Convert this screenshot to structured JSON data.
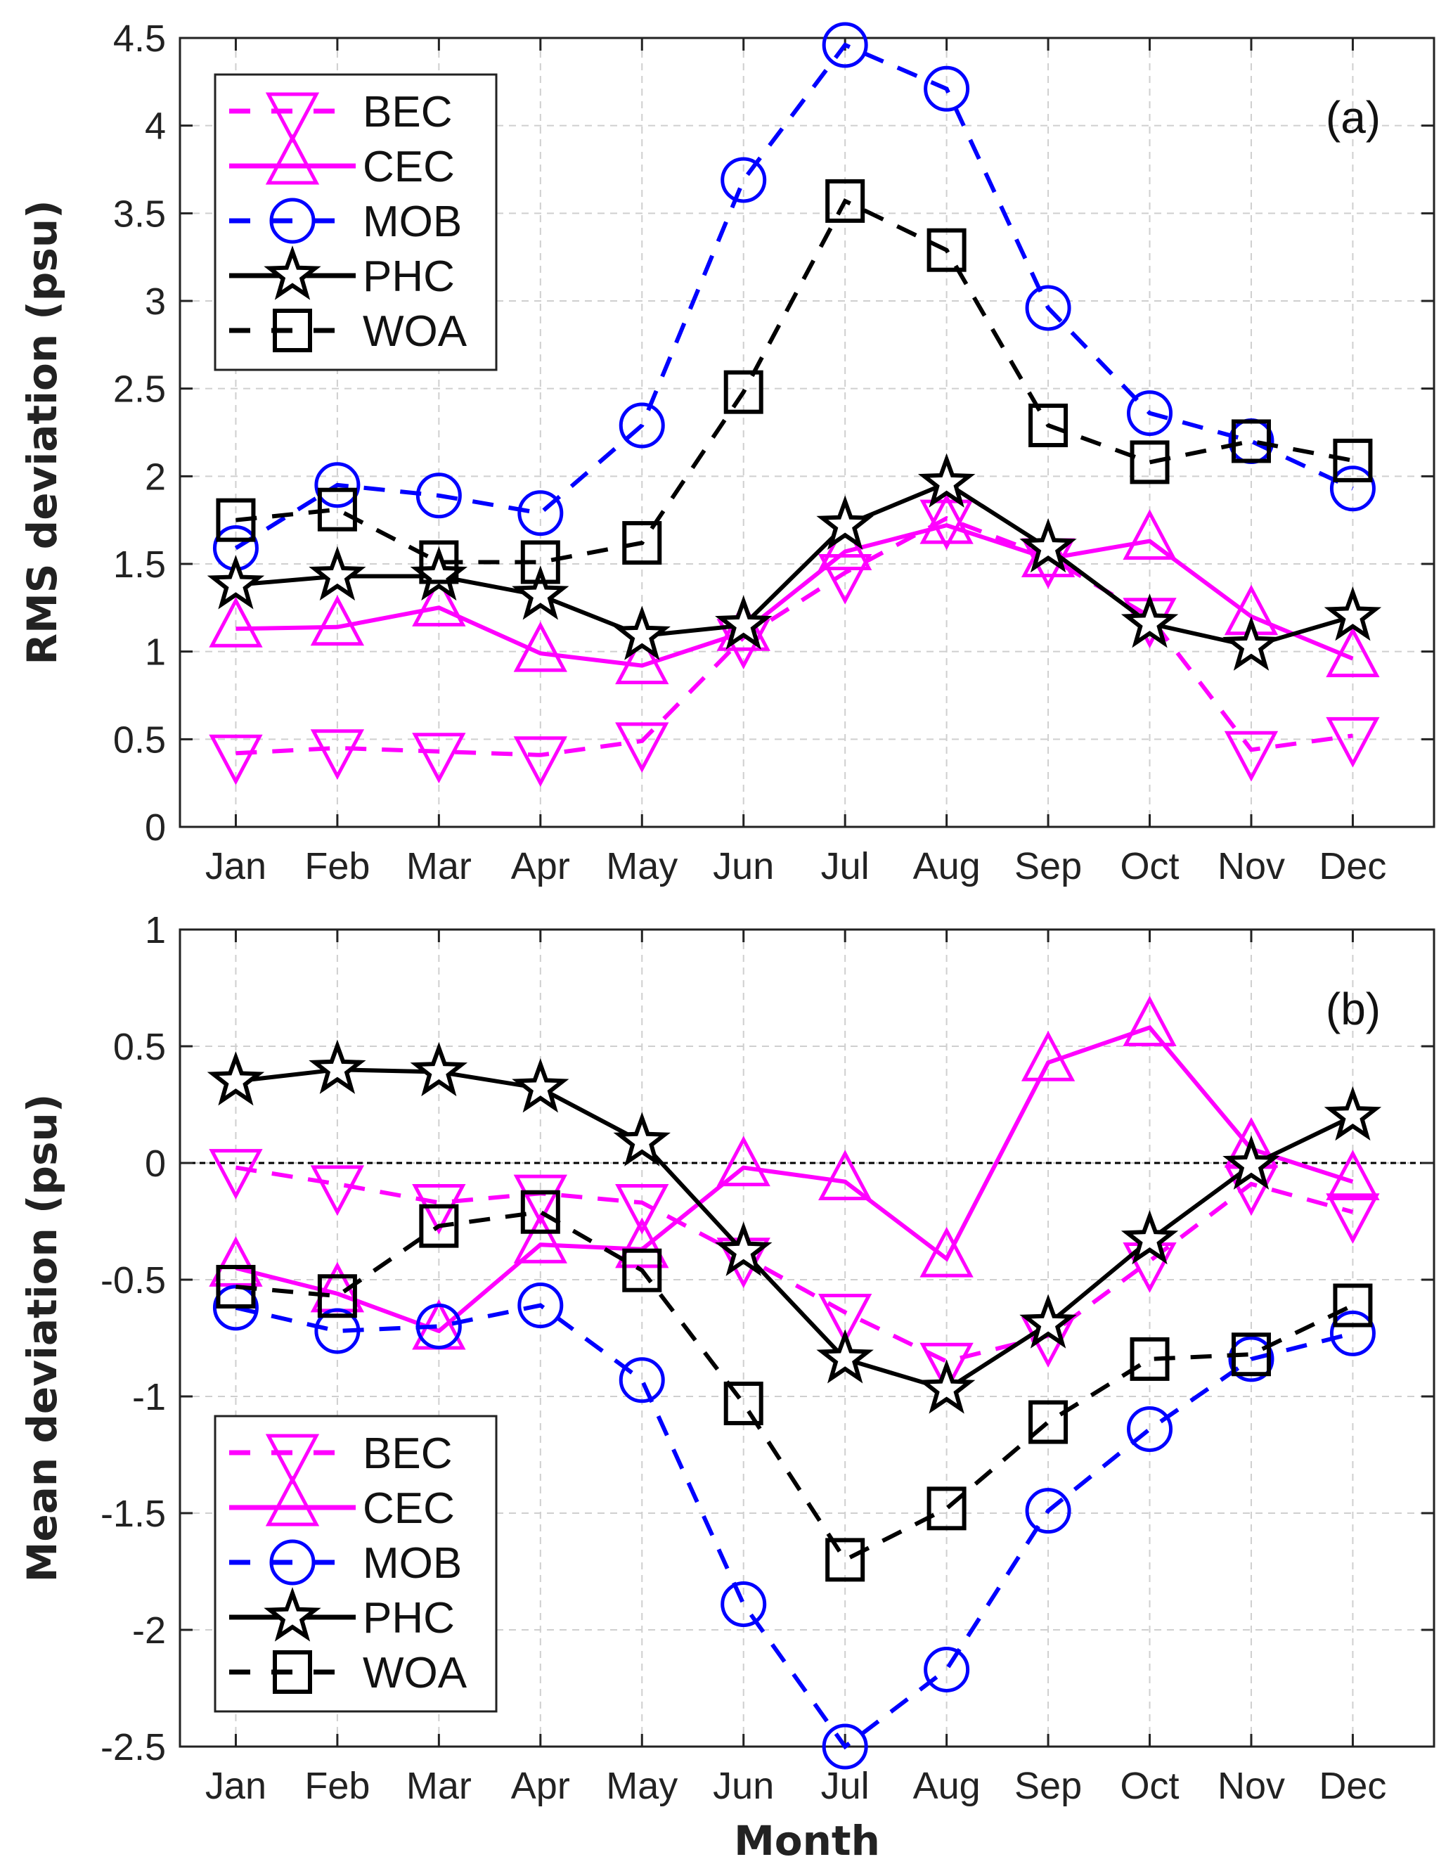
{
  "chart_data": [
    {
      "type": "line",
      "panel_label": "(a)",
      "title": "",
      "xlabel": "",
      "ylabel": "RMS deviation (psu)",
      "categories": [
        "Jan",
        "Feb",
        "Mar",
        "Apr",
        "May",
        "Jun",
        "Jul",
        "Aug",
        "Sep",
        "Oct",
        "Nov",
        "Dec"
      ],
      "ylim": [
        0,
        4.5
      ],
      "yticks": [
        0,
        0.5,
        1,
        1.5,
        2,
        2.5,
        3,
        3.5,
        4,
        4.5
      ],
      "ytick_labels": [
        "0",
        "0.5",
        "1",
        "1.5",
        "2",
        "2.5",
        "3",
        "3.5",
        "4",
        "4.5"
      ],
      "grid": true,
      "legend_position": "top-left",
      "series": [
        {
          "name": "BEC",
          "color": "#ff00ff",
          "line": "dashed",
          "marker": "triangle-down",
          "values": [
            0.42,
            0.45,
            0.43,
            0.41,
            0.49,
            1.08,
            1.45,
            1.76,
            1.54,
            1.2,
            0.44,
            0.52
          ]
        },
        {
          "name": "CEC",
          "color": "#ff00ff",
          "line": "solid",
          "marker": "triangle-up",
          "values": [
            1.13,
            1.14,
            1.25,
            0.99,
            0.92,
            1.11,
            1.57,
            1.72,
            1.53,
            1.63,
            1.2,
            0.96
          ]
        },
        {
          "name": "MOB",
          "color": "#0000ff",
          "line": "dashed",
          "marker": "circle",
          "values": [
            1.59,
            1.95,
            1.89,
            1.79,
            2.29,
            3.69,
            4.46,
            4.21,
            2.96,
            2.36,
            2.2,
            1.93
          ]
        },
        {
          "name": "PHC",
          "color": "#000000",
          "line": "solid",
          "marker": "star",
          "values": [
            1.38,
            1.43,
            1.43,
            1.32,
            1.09,
            1.15,
            1.72,
            1.96,
            1.59,
            1.16,
            1.03,
            1.2
          ]
        },
        {
          "name": "WOA",
          "color": "#000000",
          "line": "dashed",
          "marker": "square",
          "values": [
            1.75,
            1.81,
            1.51,
            1.51,
            1.62,
            2.48,
            3.57,
            3.29,
            2.29,
            2.08,
            2.2,
            2.09
          ]
        }
      ]
    },
    {
      "type": "line",
      "panel_label": "(b)",
      "title": "",
      "xlabel": "Month",
      "ylabel": "Mean deviation (psu)",
      "categories": [
        "Jan",
        "Feb",
        "Mar",
        "Apr",
        "May",
        "Jun",
        "Jul",
        "Aug",
        "Sep",
        "Oct",
        "Nov",
        "Dec"
      ],
      "ylim": [
        -2.5,
        1
      ],
      "yticks": [
        -2.5,
        -2,
        -1.5,
        -1,
        -0.5,
        0,
        0.5,
        1
      ],
      "ytick_labels": [
        "-2.5",
        "-2",
        "-1.5",
        "-1",
        "-0.5",
        "0",
        "0.5",
        "1"
      ],
      "grid": true,
      "zero_line": true,
      "legend_position": "bottom-left",
      "series": [
        {
          "name": "BEC",
          "color": "#ff00ff",
          "line": "dashed",
          "marker": "triangle-down",
          "values": [
            -0.02,
            -0.09,
            -0.17,
            -0.13,
            -0.17,
            -0.4,
            -0.64,
            -0.85,
            -0.74,
            -0.42,
            -0.09,
            -0.21
          ]
        },
        {
          "name": "CEC",
          "color": "#ff00ff",
          "line": "solid",
          "marker": "triangle-up",
          "values": [
            -0.45,
            -0.56,
            -0.72,
            -0.35,
            -0.37,
            -0.02,
            -0.08,
            -0.41,
            0.43,
            0.58,
            0.06,
            -0.08
          ]
        },
        {
          "name": "MOB",
          "color": "#0000ff",
          "line": "dashed",
          "marker": "circle",
          "values": [
            -0.62,
            -0.72,
            -0.7,
            -0.61,
            -0.93,
            -1.89,
            -2.5,
            -2.17,
            -1.49,
            -1.14,
            -0.84,
            -0.73
          ]
        },
        {
          "name": "PHC",
          "color": "#000000",
          "line": "solid",
          "marker": "star",
          "values": [
            0.35,
            0.4,
            0.39,
            0.32,
            0.09,
            -0.38,
            -0.84,
            -0.97,
            -0.69,
            -0.33,
            -0.01,
            0.2
          ]
        },
        {
          "name": "WOA",
          "color": "#000000",
          "line": "dashed",
          "marker": "square",
          "values": [
            -0.53,
            -0.57,
            -0.27,
            -0.21,
            -0.46,
            -1.03,
            -1.7,
            -1.48,
            -1.11,
            -0.84,
            -0.82,
            -0.61
          ]
        }
      ]
    }
  ]
}
